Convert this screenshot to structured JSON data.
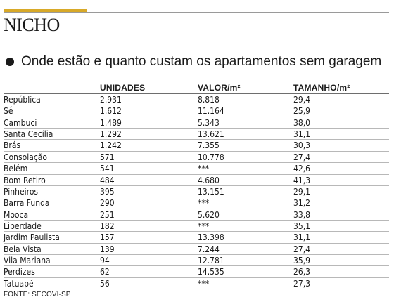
{
  "kicker": "NICHO",
  "headline": "Onde estão e quanto custam os apartamentos sem garagem",
  "table": {
    "headers": {
      "units": "UNIDADES",
      "value": "VALOR/m²",
      "size": "TAMANHO/m²"
    },
    "rows": [
      {
        "name": "República",
        "units": "2.931",
        "value": "8.818",
        "size": "29,4"
      },
      {
        "name": "Sé",
        "units": "1.612",
        "value": "11.164",
        "size": "25,9"
      },
      {
        "name": "Cambuci",
        "units": "1.489",
        "value": "5.343",
        "size": "38,0"
      },
      {
        "name": "Santa Cecília",
        "units": "1.292",
        "value": "13.621",
        "size": "31,1"
      },
      {
        "name": "Brás",
        "units": "1.242",
        "value": "7.355",
        "size": "30,3"
      },
      {
        "name": "Consolação",
        "units": "571",
        "value": "10.778",
        "size": "27,4"
      },
      {
        "name": "Belém",
        "units": "541",
        "value": "***",
        "size": "42,6"
      },
      {
        "name": "Bom Retiro",
        "units": "484",
        "value": "4.680",
        "size": "41,3"
      },
      {
        "name": "Pinheiros",
        "units": "395",
        "value": "13.151",
        "size": "29,1"
      },
      {
        "name": "Barra Funda",
        "units": "290",
        "value": "***",
        "size": "31,2"
      },
      {
        "name": "Mooca",
        "units": "251",
        "value": "5.620",
        "size": "33,8"
      },
      {
        "name": "Liberdade",
        "units": "182",
        "value": "***",
        "size": "35,1"
      },
      {
        "name": "Jardim Paulista",
        "units": "157",
        "value": "13.398",
        "size": "31,1"
      },
      {
        "name": "Bela Vista",
        "units": "139",
        "value": "7.244",
        "size": "27,4"
      },
      {
        "name": "Vila Mariana",
        "units": "94",
        "value": "12.781",
        "size": "35,9"
      },
      {
        "name": "Perdizes",
        "units": "62",
        "value": "14.535",
        "size": "26,3"
      },
      {
        "name": "Tatuapé",
        "units": "56",
        "value": "***",
        "size": "27,3"
      }
    ]
  },
  "source": "FONTE: SECOVI-SP",
  "colors": {
    "accent": "#d8a928",
    "text": "#1a1a1a",
    "rule": "#b8b8b8"
  }
}
